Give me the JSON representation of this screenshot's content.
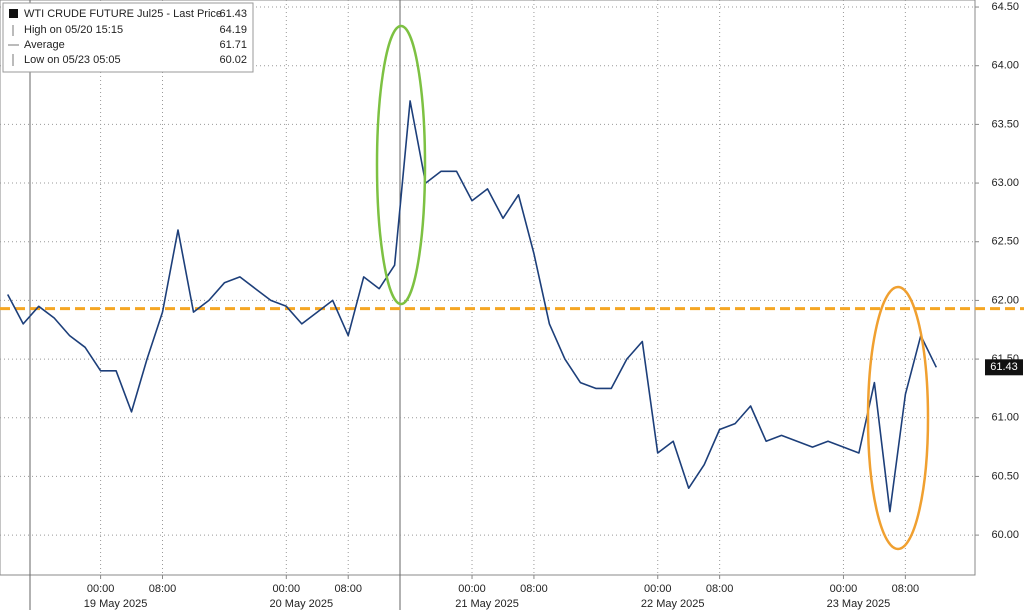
{
  "chart_data": {
    "type": "line",
    "legend": {
      "title": "WTI CRUDE FUTURE Jul25 - Last Price",
      "title_value": 61.43,
      "items": [
        {
          "label": "High on 05/20 15:15",
          "value": 64.19
        },
        {
          "label": "Average",
          "value": 61.71
        },
        {
          "label": "Low on 05/23 05:05",
          "value": 60.02
        }
      ]
    },
    "categories": [
      null,
      null,
      null,
      null,
      null,
      null,
      "00:00",
      null,
      null,
      null,
      "08:00",
      null,
      null,
      null,
      null,
      null,
      null,
      null,
      "00:00",
      null,
      null,
      null,
      "08:00",
      null,
      null,
      null,
      null,
      null,
      null,
      null,
      "00:00",
      null,
      null,
      null,
      "08:00",
      null,
      null,
      null,
      null,
      null,
      null,
      null,
      "00:00",
      null,
      null,
      null,
      "08:00",
      null,
      null,
      null,
      null,
      null,
      null,
      null,
      "00:00",
      null,
      null,
      null,
      "08:00",
      null,
      null,
      null,
      null
    ],
    "dates": [
      null,
      null,
      null,
      null,
      null,
      null,
      "19 May 2025",
      null,
      null,
      null,
      null,
      null,
      null,
      null,
      null,
      null,
      null,
      null,
      "20 May 2025",
      null,
      null,
      null,
      null,
      null,
      null,
      null,
      null,
      null,
      null,
      null,
      "21 May 2025",
      null,
      null,
      null,
      null,
      null,
      null,
      null,
      null,
      null,
      null,
      null,
      "22 May 2025",
      null,
      null,
      null,
      null,
      null,
      null,
      null,
      null,
      null,
      null,
      null,
      "23 May 2025",
      null,
      null,
      null,
      null,
      null,
      null,
      null,
      null
    ],
    "series": [
      {
        "name": "WTI CRUDE FUTURE Jul25 - Last Price",
        "color": "#1d3f7a",
        "values": [
          62.05,
          61.8,
          61.95,
          61.85,
          61.7,
          61.6,
          61.4,
          61.4,
          61.05,
          61.5,
          61.9,
          62.6,
          61.9,
          62.0,
          62.15,
          62.2,
          62.1,
          62.0,
          61.95,
          61.8,
          61.9,
          62.0,
          61.7,
          62.2,
          62.1,
          62.3,
          63.7,
          63.0,
          63.1,
          63.1,
          62.85,
          62.95,
          62.7,
          62.9,
          62.4,
          61.8,
          61.5,
          61.3,
          61.25,
          61.25,
          61.5,
          61.65,
          60.7,
          60.8,
          60.4,
          60.6,
          60.9,
          60.95,
          61.1,
          60.8,
          60.85,
          60.8,
          60.75,
          60.8,
          60.75,
          60.7,
          61.3,
          60.2,
          61.2,
          61.7,
          61.43,
          null,
          null
        ]
      }
    ],
    "last_price": 61.43,
    "reference_line": {
      "value": 61.93,
      "color": "#f5a623"
    },
    "ylim": [
      59.66,
      64.56
    ],
    "yticks": [
      {
        "value": 60,
        "label": "60.00"
      },
      {
        "value": 60.5,
        "label": "60.50"
      },
      {
        "value": 61,
        "label": "61.00"
      },
      {
        "value": 61.5,
        "label": "61.50"
      },
      {
        "value": 62,
        "label": "62.00"
      },
      {
        "value": 62.5,
        "label": "62.50"
      },
      {
        "value": 63,
        "label": "63.00"
      },
      {
        "value": 63.5,
        "label": "63.50"
      },
      {
        "value": 64,
        "label": "64.00"
      },
      {
        "value": 64.5,
        "label": "64.50"
      }
    ],
    "grid": true
  }
}
